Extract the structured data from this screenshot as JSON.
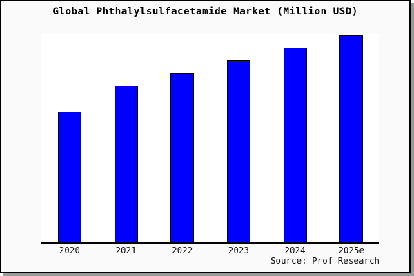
{
  "chart_data": {
    "type": "bar",
    "title": "Global Phthalylsulfacetamide Market (Million USD)",
    "categories": [
      "2020",
      "2021",
      "2022",
      "2023",
      "2024",
      "2025e"
    ],
    "values": [
      63,
      75.5,
      81.7,
      88,
      94,
      100
    ],
    "value_units": "relative bar height, tallest bar (2025e) = 100; no numeric y-axis labels are shown in the image",
    "xlabel": "",
    "ylabel": "",
    "ylim": [
      0,
      100
    ],
    "y_axis_visible": false,
    "gridlines": false,
    "legend_position": "none",
    "source": "Source: Prof Research"
  },
  "colors": {
    "bar_fill": "#0000ff",
    "bar_border": "#000000",
    "chart_background": "#fafafa",
    "plot_background": "#ffffff",
    "axis": "#000000",
    "text": "#000000",
    "shadow": "#9a9a9a"
  }
}
